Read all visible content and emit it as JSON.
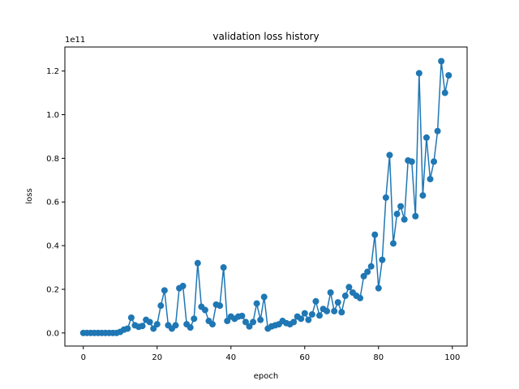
{
  "chart_data": {
    "type": "line",
    "title": "validation loss history",
    "xlabel": "epoch",
    "ylabel": "loss",
    "y_offset_label": "1e11",
    "y_multiplier": 100000000000.0,
    "xlim": [
      -5,
      104
    ],
    "ylim": [
      -0.06,
      1.31
    ],
    "xticks": [
      0,
      20,
      40,
      60,
      80,
      100
    ],
    "xtick_labels": [
      "0",
      "20",
      "40",
      "60",
      "80",
      "100"
    ],
    "yticks": [
      0.0,
      0.2,
      0.4,
      0.6,
      0.8,
      1.0,
      1.2
    ],
    "ytick_labels": [
      "0.0",
      "0.2",
      "0.4",
      "0.6",
      "0.8",
      "1.0",
      "1.2"
    ],
    "grid": false,
    "color": "#1f77b4",
    "marker": "circle",
    "series": [
      {
        "x": [
          0,
          1,
          2,
          3,
          4,
          5,
          6,
          7,
          8,
          9,
          10,
          11,
          12,
          13,
          14,
          15,
          16,
          17,
          18,
          19,
          20,
          21,
          22,
          23,
          24,
          25,
          26,
          27,
          28,
          29,
          30,
          31,
          32,
          33,
          34,
          35,
          36,
          37,
          38,
          39,
          40,
          41,
          42,
          43,
          44,
          45,
          46,
          47,
          48,
          49,
          50,
          51,
          52,
          53,
          54,
          55,
          56,
          57,
          58,
          59,
          60,
          61,
          62,
          63,
          64,
          65,
          66,
          67,
          68,
          69,
          70,
          71,
          72,
          73,
          74,
          75,
          76,
          77,
          78,
          79,
          80,
          81,
          82,
          83,
          84,
          85,
          86,
          87,
          88,
          89,
          90,
          91,
          92,
          93,
          94,
          95,
          96,
          97,
          98,
          99
        ],
        "y": [
          0.0,
          0.0,
          0.0,
          0.0,
          0.0,
          0.0,
          0.0,
          0.0,
          0.0,
          0.0,
          0.005,
          0.015,
          0.02,
          0.07,
          0.035,
          0.028,
          0.032,
          0.06,
          0.05,
          0.02,
          0.04,
          0.125,
          0.195,
          0.035,
          0.02,
          0.035,
          0.205,
          0.215,
          0.04,
          0.025,
          0.065,
          0.32,
          0.12,
          0.105,
          0.055,
          0.04,
          0.13,
          0.125,
          0.3,
          0.055,
          0.075,
          0.065,
          0.075,
          0.078,
          0.05,
          0.03,
          0.05,
          0.135,
          0.06,
          0.165,
          0.02,
          0.03,
          0.035,
          0.04,
          0.055,
          0.045,
          0.04,
          0.05,
          0.075,
          0.065,
          0.09,
          0.06,
          0.085,
          0.145,
          0.08,
          0.11,
          0.1,
          0.185,
          0.1,
          0.14,
          0.095,
          0.17,
          0.21,
          0.185,
          0.17,
          0.16,
          0.26,
          0.28,
          0.305,
          0.45,
          0.205,
          0.335,
          0.62,
          0.815,
          0.41,
          0.545,
          0.58,
          0.52,
          0.79,
          0.785,
          0.535,
          1.19,
          0.63,
          0.895,
          0.705,
          0.785,
          0.925,
          1.245,
          1.1,
          1.18
        ]
      }
    ]
  }
}
